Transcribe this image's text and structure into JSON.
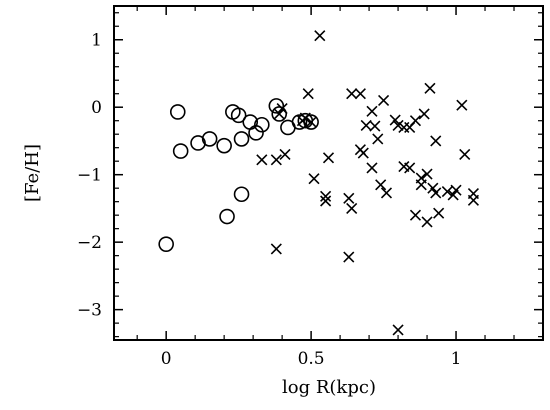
{
  "chart_data": {
    "type": "scatter",
    "title": "",
    "xlabel": "log R(kpc)",
    "ylabel": "[Fe/H]",
    "xlim": [
      -0.18,
      1.3
    ],
    "ylim": [
      -3.45,
      1.5
    ],
    "xticks": [
      {
        "value": 0,
        "label": "0"
      },
      {
        "value": 0.5,
        "label": "0.5"
      },
      {
        "value": 1,
        "label": "1"
      }
    ],
    "yticks": [
      {
        "value": 1,
        "label": "1"
      },
      {
        "value": 0,
        "label": "0"
      },
      {
        "value": -1,
        "label": "−1"
      },
      {
        "value": -2,
        "label": "−2"
      },
      {
        "value": -3,
        "label": "−3"
      }
    ],
    "grid": false,
    "series": [
      {
        "marker": "circle",
        "points": [
          {
            "x": 0.0,
            "y": -2.03
          },
          {
            "x": 0.04,
            "y": -0.07
          },
          {
            "x": 0.05,
            "y": -0.65
          },
          {
            "x": 0.11,
            "y": -0.53
          },
          {
            "x": 0.15,
            "y": -0.47
          },
          {
            "x": 0.2,
            "y": -0.57
          },
          {
            "x": 0.21,
            "y": -1.62
          },
          {
            "x": 0.23,
            "y": -0.07
          },
          {
            "x": 0.25,
            "y": -0.12
          },
          {
            "x": 0.26,
            "y": -1.29
          },
          {
            "x": 0.26,
            "y": -0.47
          },
          {
            "x": 0.29,
            "y": -0.22
          },
          {
            "x": 0.31,
            "y": -0.38
          },
          {
            "x": 0.33,
            "y": -0.26
          },
          {
            "x": 0.38,
            "y": 0.02
          },
          {
            "x": 0.39,
            "y": -0.1
          },
          {
            "x": 0.42,
            "y": -0.3
          },
          {
            "x": 0.46,
            "y": -0.22
          },
          {
            "x": 0.48,
            "y": -0.2
          },
          {
            "x": 0.5,
            "y": -0.22
          }
        ]
      },
      {
        "marker": "cross",
        "points": [
          {
            "x": 0.53,
            "y": 1.06
          },
          {
            "x": 0.49,
            "y": 0.2
          },
          {
            "x": 0.39,
            "y": -0.1
          },
          {
            "x": 0.4,
            "y": -0.02
          },
          {
            "x": 0.33,
            "y": -0.78
          },
          {
            "x": 0.38,
            "y": -0.78
          },
          {
            "x": 0.41,
            "y": -0.7
          },
          {
            "x": 0.47,
            "y": -0.2
          },
          {
            "x": 0.48,
            "y": -0.16
          },
          {
            "x": 0.5,
            "y": -0.22
          },
          {
            "x": 0.51,
            "y": -1.06
          },
          {
            "x": 0.55,
            "y": -1.32
          },
          {
            "x": 0.55,
            "y": -1.39
          },
          {
            "x": 0.56,
            "y": -0.75
          },
          {
            "x": 0.38,
            "y": -2.1
          },
          {
            "x": 0.63,
            "y": -2.22
          },
          {
            "x": 0.63,
            "y": -1.35
          },
          {
            "x": 0.64,
            "y": -1.5
          },
          {
            "x": 0.64,
            "y": 0.2
          },
          {
            "x": 0.67,
            "y": 0.2
          },
          {
            "x": 0.67,
            "y": -0.63
          },
          {
            "x": 0.68,
            "y": -0.68
          },
          {
            "x": 0.69,
            "y": -0.27
          },
          {
            "x": 0.71,
            "y": -0.9
          },
          {
            "x": 0.71,
            "y": -0.06
          },
          {
            "x": 0.72,
            "y": -0.28
          },
          {
            "x": 0.73,
            "y": -0.47
          },
          {
            "x": 0.74,
            "y": -1.15
          },
          {
            "x": 0.75,
            "y": 0.1
          },
          {
            "x": 0.76,
            "y": -1.27
          },
          {
            "x": 0.79,
            "y": -0.19
          },
          {
            "x": 0.8,
            "y": -0.27
          },
          {
            "x": 0.82,
            "y": -0.88
          },
          {
            "x": 0.82,
            "y": -0.3
          },
          {
            "x": 0.84,
            "y": -0.3
          },
          {
            "x": 0.84,
            "y": -0.9
          },
          {
            "x": 0.86,
            "y": -1.6
          },
          {
            "x": 0.86,
            "y": -0.2
          },
          {
            "x": 0.88,
            "y": -1.05
          },
          {
            "x": 0.88,
            "y": -1.15
          },
          {
            "x": 0.89,
            "y": -0.1
          },
          {
            "x": 0.9,
            "y": -1.7
          },
          {
            "x": 0.9,
            "y": -0.99
          },
          {
            "x": 0.91,
            "y": 0.28
          },
          {
            "x": 0.92,
            "y": -1.2
          },
          {
            "x": 0.93,
            "y": -1.27
          },
          {
            "x": 0.93,
            "y": -0.5
          },
          {
            "x": 0.94,
            "y": -1.57
          },
          {
            "x": 0.97,
            "y": -1.25
          },
          {
            "x": 0.99,
            "y": -1.3
          },
          {
            "x": 1.0,
            "y": -1.23
          },
          {
            "x": 1.02,
            "y": 0.03
          },
          {
            "x": 1.03,
            "y": -0.7
          },
          {
            "x": 1.06,
            "y": -1.28
          },
          {
            "x": 1.06,
            "y": -1.38
          },
          {
            "x": 0.8,
            "y": -3.3
          }
        ]
      }
    ]
  }
}
